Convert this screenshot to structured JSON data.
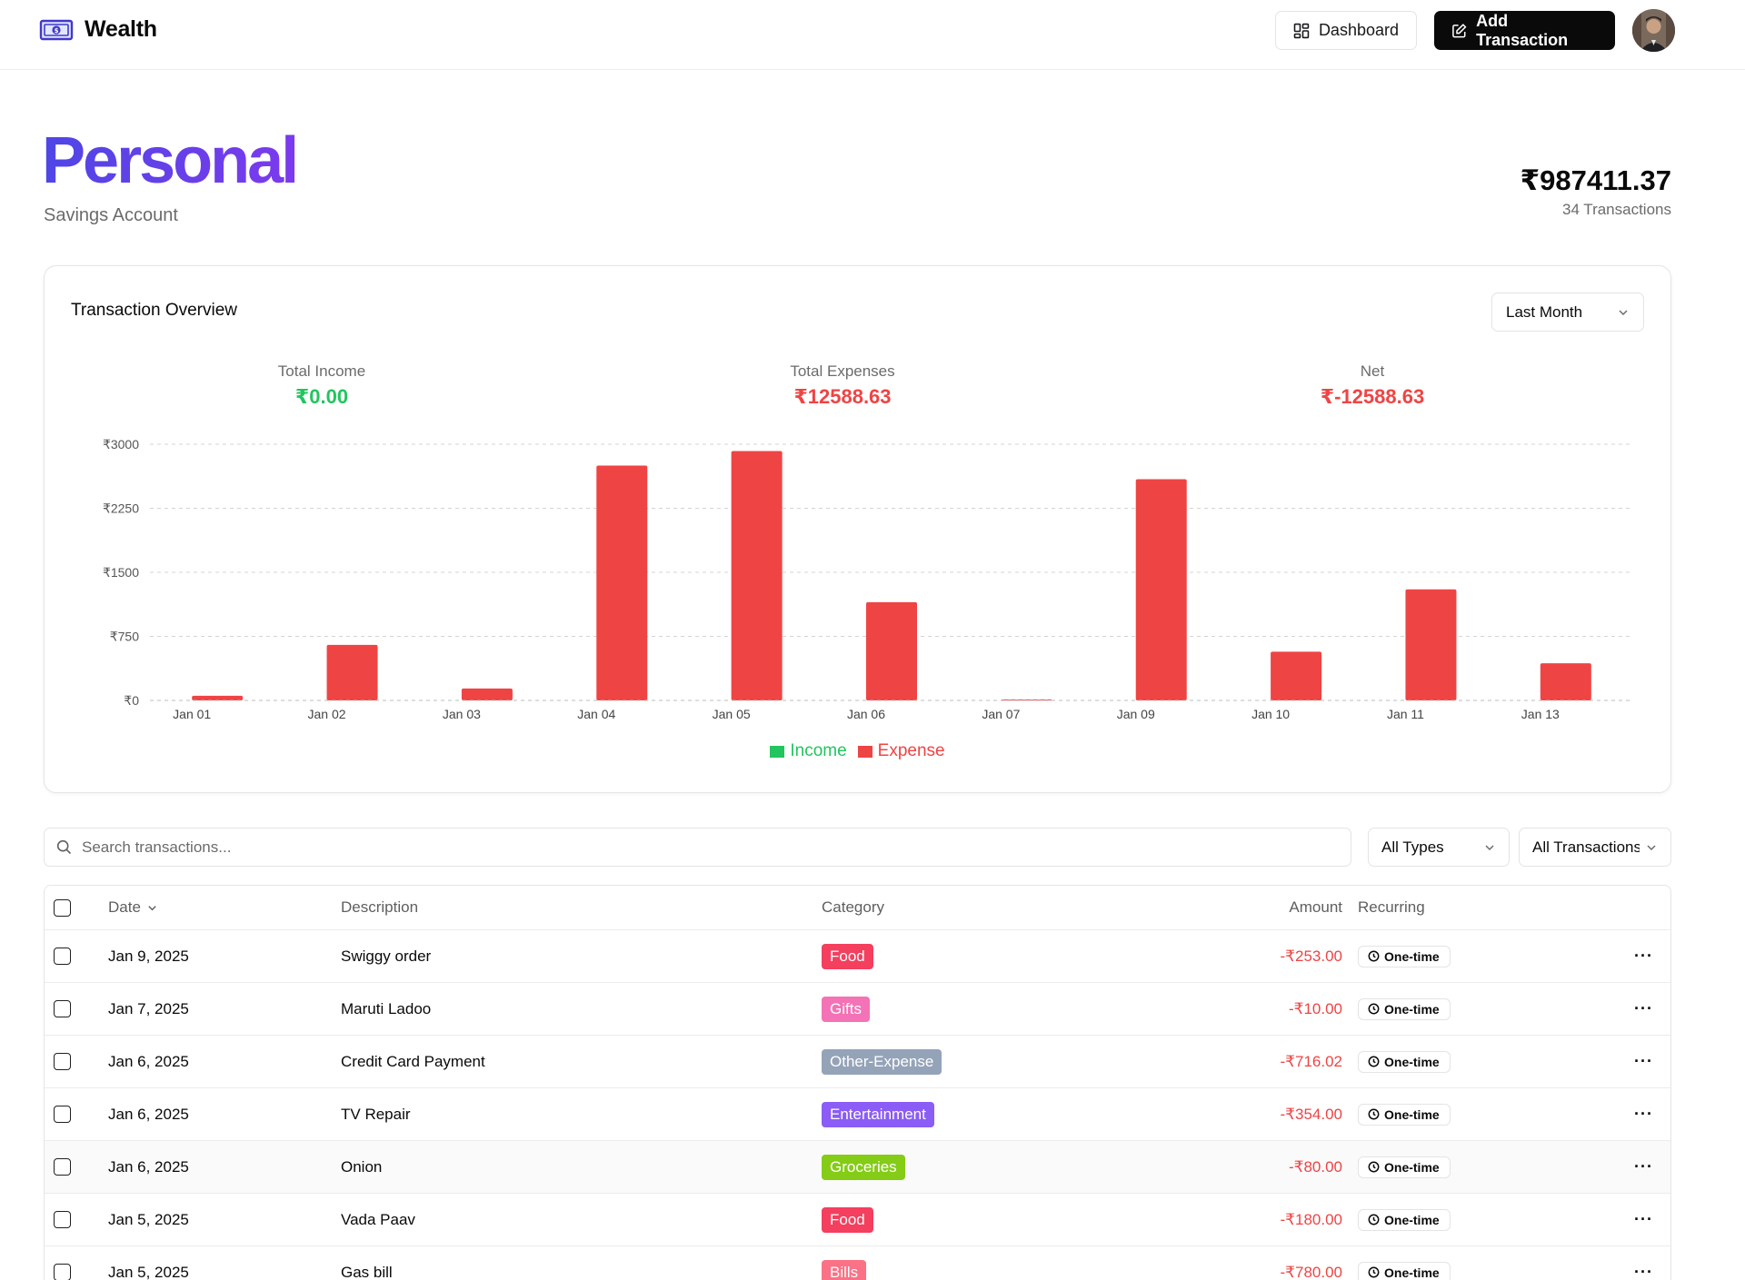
{
  "header": {
    "brand": "Wealth",
    "dashboard_label": "Dashboard",
    "add_label": "Add Transaction"
  },
  "account": {
    "name": "Personal",
    "type": "Savings Account",
    "balance": "₹987411.37",
    "transactions": "34 Transactions"
  },
  "overview": {
    "title": "Transaction Overview",
    "period": "Last Month",
    "total_income_label": "Total Income",
    "total_income": "₹0.00",
    "total_expenses_label": "Total Expenses",
    "total_expenses": "₹12588.63",
    "net_label": "Net",
    "net": "₹-12588.63"
  },
  "colors": {
    "income": "#22c55e",
    "expense": "#ef4444",
    "accent_start": "#4f46e5",
    "accent_end": "#7c3aed"
  },
  "chart_data": {
    "type": "bar",
    "categories": [
      "Jan 01",
      "Jan 02",
      "Jan 03",
      "Jan 04",
      "Jan 05",
      "Jan 06",
      "Jan 07",
      "Jan 09",
      "Jan 10",
      "Jan 11",
      "Jan 13"
    ],
    "series": [
      {
        "name": "Income",
        "values": [
          0,
          0,
          0,
          0,
          0,
          0,
          0,
          0,
          0,
          0,
          0
        ]
      },
      {
        "name": "Expense",
        "values": [
          55,
          650,
          140,
          2750,
          2920,
          1150,
          10,
          2590,
          570,
          1300,
          435
        ]
      }
    ],
    "yticks": [
      "₹0",
      "₹750",
      "₹1500",
      "₹2250",
      "₹3000"
    ],
    "ylim": [
      0,
      3000
    ],
    "grid": true,
    "legend": "bottom"
  },
  "filters": {
    "search_placeholder": "Search transactions...",
    "type": "All Types",
    "recurring": "All Transactions"
  },
  "table": {
    "columns": {
      "date": "Date",
      "description": "Description",
      "category": "Category",
      "amount": "Amount",
      "recurring": "Recurring"
    },
    "rows": [
      {
        "date": "Jan 9, 2025",
        "description": "Swiggy order",
        "category": "Food",
        "category_color": "#f43f5e",
        "amount": "-₹253.00",
        "recurring": "One-time"
      },
      {
        "date": "Jan 7, 2025",
        "description": "Maruti Ladoo",
        "category": "Gifts",
        "category_color": "#f472b6",
        "amount": "-₹10.00",
        "recurring": "One-time"
      },
      {
        "date": "Jan 6, 2025",
        "description": "Credit Card Payment",
        "category": "Other-Expense",
        "category_color": "#94a3b8",
        "amount": "-₹716.02",
        "recurring": "One-time"
      },
      {
        "date": "Jan 6, 2025",
        "description": "TV Repair",
        "category": "Entertainment",
        "category_color": "#8b5cf6",
        "amount": "-₹354.00",
        "recurring": "One-time"
      },
      {
        "date": "Jan 6, 2025",
        "description": "Onion",
        "category": "Groceries",
        "category_color": "#84cc16",
        "amount": "-₹80.00",
        "recurring": "One-time"
      },
      {
        "date": "Jan 5, 2025",
        "description": "Vada Paav",
        "category": "Food",
        "category_color": "#f43f5e",
        "amount": "-₹180.00",
        "recurring": "One-time"
      },
      {
        "date": "Jan 5, 2025",
        "description": "Gas bill",
        "category": "Bills",
        "category_color": "#fb7185",
        "amount": "-₹780.00",
        "recurring": "One-time"
      }
    ]
  }
}
